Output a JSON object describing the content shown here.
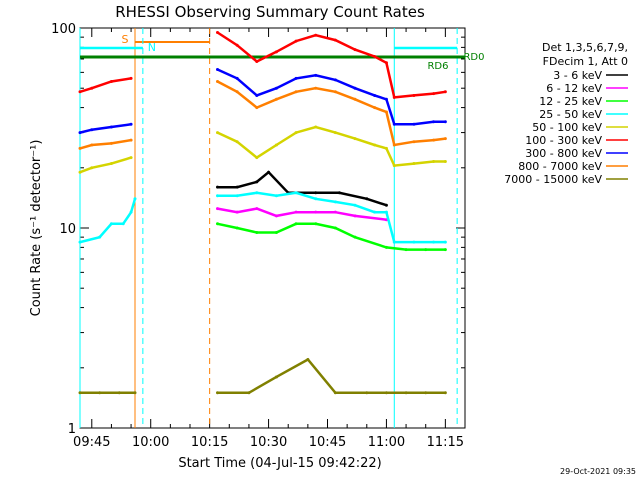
{
  "chart_data": {
    "type": "line",
    "title": "RHESSI Observing Summary Count Rates",
    "xlabel": "Start Time (04-Jul-15 09:42:22)",
    "ylabel": "Count Rate (s⁻¹ detector⁻¹)",
    "y_scale": "log",
    "ylim": [
      1,
      100
    ],
    "xlim": [
      "09:42",
      "11:20"
    ],
    "x_ticks": [
      "09:45",
      "10:00",
      "10:15",
      "10:30",
      "10:45",
      "11:00",
      "11:15"
    ],
    "y_ticks": [
      "1",
      "10",
      "100"
    ],
    "legend_header": [
      "Det 1,3,5,6,7,9,",
      "FDecim 1, Att 0"
    ],
    "legend_position": "right",
    "timestamp": "29-Oct-2021 09:35",
    "annotations": {
      "saa_label": "S",
      "night_label": "N",
      "rd_labels": [
        "RD6",
        "RD0"
      ]
    },
    "flag_colors": {
      "saa": "#ff7f00",
      "night": "#00ffff",
      "rd": "#008000"
    },
    "series": [
      {
        "name": "3 - 6 keV",
        "color": "#000000",
        "x": [
          "10:17",
          "10:22",
          "10:27",
          "10:30",
          "10:35",
          "10:42",
          "10:48",
          "10:55",
          "11:00"
        ],
        "values": [
          16,
          16,
          17,
          19,
          15,
          15,
          15,
          14,
          13
        ]
      },
      {
        "name": "6 - 12 keV",
        "color": "#ff00ff",
        "x": [
          "10:17",
          "10:22",
          "10:27",
          "10:32",
          "10:37",
          "10:42",
          "10:47",
          "10:52",
          "11:00"
        ],
        "values": [
          12.5,
          12,
          12.5,
          11.5,
          12,
          12,
          12,
          11.5,
          11
        ]
      },
      {
        "name": "12 - 25 keV",
        "color": "#00ff00",
        "x": [
          "10:17",
          "10:22",
          "10:27",
          "10:32",
          "10:37",
          "10:42",
          "10:47",
          "10:52",
          "11:00",
          "11:05",
          "11:10",
          "11:15"
        ],
        "values": [
          10.5,
          10,
          9.5,
          9.5,
          10.5,
          10.5,
          10,
          9,
          8,
          7.8,
          7.8,
          7.8
        ]
      },
      {
        "name": "25 - 50 keV",
        "color": "#00ffff",
        "x": [
          "09:42",
          "09:47",
          "09:50",
          "09:53",
          "09:55",
          "09:56",
          "10:17",
          "10:22",
          "10:27",
          "10:32",
          "10:37",
          "10:42",
          "10:47",
          "10:52",
          "10:57",
          "11:00",
          "11:02",
          "11:07",
          "11:12",
          "11:15"
        ],
        "values": [
          8.5,
          9,
          10.5,
          10.5,
          12,
          14,
          14.5,
          14.5,
          15,
          14.5,
          15,
          14,
          13.5,
          13,
          12,
          12,
          8.5,
          8.5,
          8.5,
          8.5
        ]
      },
      {
        "name": "50 - 100 keV",
        "color": "#d4d400",
        "x": [
          "09:42",
          "09:45",
          "09:50",
          "09:55",
          "10:17",
          "10:22",
          "10:27",
          "10:32",
          "10:37",
          "10:42",
          "10:47",
          "10:52",
          "10:57",
          "11:00",
          "11:02",
          "11:07",
          "11:12",
          "11:15"
        ],
        "values": [
          19,
          20,
          21,
          22.5,
          30,
          27,
          22.5,
          26,
          30,
          32,
          30,
          28,
          26,
          25,
          20.5,
          21,
          21.5,
          21.5
        ]
      },
      {
        "name": "100 - 300 keV",
        "color": "#ff0000",
        "x": [
          "09:42",
          "09:45",
          "09:50",
          "09:55",
          "10:17",
          "10:22",
          "10:27",
          "10:32",
          "10:37",
          "10:42",
          "10:47",
          "10:52",
          "10:57",
          "11:00",
          "11:02",
          "11:07",
          "11:12",
          "11:15"
        ],
        "values": [
          48,
          50,
          54,
          56,
          95,
          82,
          68,
          76,
          86,
          92,
          87,
          78,
          72,
          67,
          45,
          46,
          47,
          48
        ]
      },
      {
        "name": "300 - 800 keV",
        "color": "#0000ff",
        "x": [
          "09:42",
          "09:45",
          "09:50",
          "09:55",
          "10:17",
          "10:22",
          "10:27",
          "10:32",
          "10:37",
          "10:42",
          "10:47",
          "10:52",
          "10:57",
          "11:00",
          "11:02",
          "11:07",
          "11:12",
          "11:15"
        ],
        "values": [
          30,
          31,
          32,
          33,
          62,
          56,
          46,
          50,
          56,
          58,
          55,
          50,
          46,
          44,
          33,
          33,
          34,
          34
        ]
      },
      {
        "name": "800 - 7000 keV",
        "color": "#ff7f00",
        "x": [
          "09:42",
          "09:45",
          "09:50",
          "09:55",
          "10:17",
          "10:22",
          "10:27",
          "10:32",
          "10:37",
          "10:42",
          "10:47",
          "10:52",
          "10:57",
          "11:00",
          "11:02",
          "11:07",
          "11:12",
          "11:15"
        ],
        "values": [
          25,
          26,
          26.5,
          27.5,
          54,
          48,
          40,
          44,
          48,
          50,
          48,
          44,
          40,
          38,
          26,
          27,
          27.5,
          28
        ]
      },
      {
        "name": "7000 - 15000 keV",
        "color": "#808000",
        "x": [
          "09:42",
          "09:47",
          "09:52",
          "09:56",
          "10:17",
          "10:25",
          "10:32",
          "10:40",
          "10:47",
          "10:55",
          "11:00",
          "11:05",
          "11:10",
          "11:15"
        ],
        "values": [
          1.5,
          1.5,
          1.5,
          1.5,
          1.5,
          1.5,
          1.8,
          2.2,
          1.5,
          1.5,
          1.5,
          1.5,
          1.5,
          1.5
        ]
      }
    ]
  }
}
